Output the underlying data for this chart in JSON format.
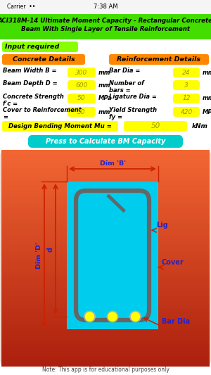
{
  "title_line1": "ACI318M-14 Ultimate Moment Capacity - Rectangular Concrete",
  "title_line2": "Beam With Single Layer of Tensile Reinforcement",
  "title_bg": "#44dd00",
  "title_color": "black",
  "input_label": "Input required",
  "input_bg": "#88ff00",
  "section1_label": "Concrete Details",
  "section2_label": "Reinforcement Details",
  "section_bg": "#ff8800",
  "value_bg": "#ffff00",
  "design_label": "Design Bending Moment Mu =",
  "design_value": "50",
  "design_unit": "kNm",
  "design_bg": "#ffff00",
  "button_label": "Press to Calculate BM Capacity",
  "button_bg": "#00cccc",
  "beam_fill": "#00ccee",
  "stirrup_color": "#666666",
  "bar_color": "#ffff00",
  "dim_color": "#cc2200",
  "label_color": "#2222cc",
  "note": "Note: This app is for educational purposes only",
  "white_bg": "#ffffff",
  "diagram_area_bg": "#f5ddd0"
}
